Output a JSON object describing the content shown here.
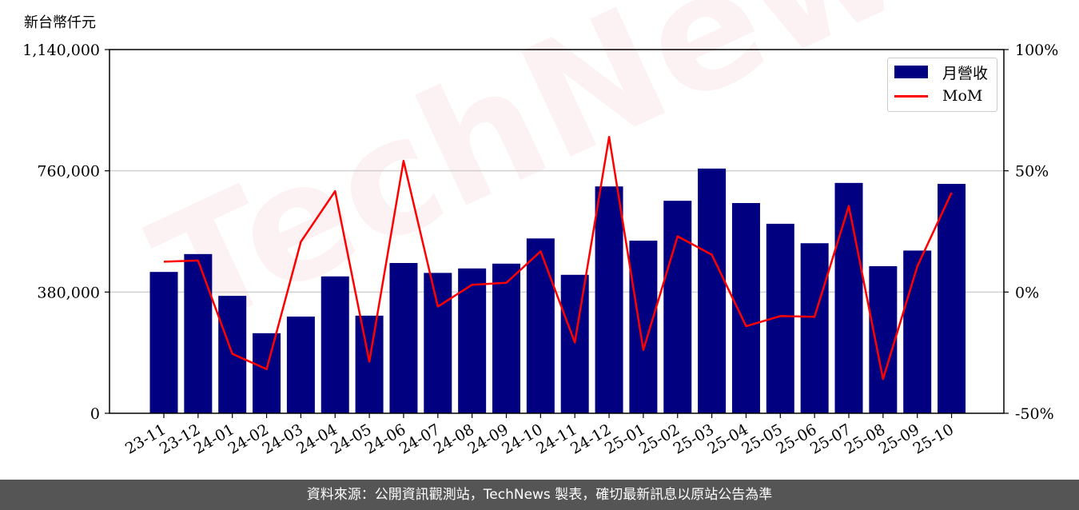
{
  "chart_data": {
    "type": "bar",
    "unit_label": "新台幣仟元",
    "categories": [
      "23-11",
      "23-12",
      "24-01",
      "24-02",
      "24-03",
      "24-04",
      "24-05",
      "24-06",
      "24-07",
      "24-08",
      "24-09",
      "24-10",
      "24-11",
      "24-12",
      "25-01",
      "25-02",
      "25-03",
      "25-04",
      "25-05",
      "25-06",
      "25-07",
      "25-08",
      "25-09",
      "25-10"
    ],
    "series": [
      {
        "name": "月營收",
        "type": "bar",
        "axis": "left",
        "color": "#000080",
        "values": [
          443000,
          499000,
          368000,
          251000,
          303000,
          429000,
          306000,
          471000,
          440000,
          454000,
          469000,
          548000,
          434000,
          711000,
          541000,
          666000,
          767000,
          659000,
          594000,
          533000,
          722000,
          461000,
          510000,
          719000
        ]
      },
      {
        "name": "MoM",
        "type": "line",
        "axis": "right",
        "color": "#ff0000",
        "values": [
          12.5,
          13.0,
          -25.5,
          -31.8,
          20.7,
          41.6,
          -28.7,
          54.1,
          -6.0,
          3.0,
          3.8,
          16.8,
          -20.8,
          64.0,
          -23.9,
          23.0,
          15.4,
          -14.1,
          -9.9,
          -10.2,
          35.5,
          -35.9,
          10.6,
          41.0
        ]
      }
    ],
    "y_left": {
      "min": 0,
      "max": 1140000,
      "ticks": [
        "0",
        "380,000",
        "760,000",
        "1,140,000"
      ],
      "tick_values": [
        0,
        380000,
        760000,
        1140000
      ]
    },
    "y_right": {
      "min": -50,
      "max": 100,
      "ticks": [
        "-50%",
        "0%",
        "50%",
        "100%"
      ],
      "tick_values": [
        -50,
        0,
        50,
        100
      ]
    },
    "grid": "horizontal",
    "legend_position": "top-right"
  },
  "footer": "資料來源：公開資訊觀測站，TechNews 製表，確切最新訊息以原站公告為準",
  "watermark": "TechNews"
}
